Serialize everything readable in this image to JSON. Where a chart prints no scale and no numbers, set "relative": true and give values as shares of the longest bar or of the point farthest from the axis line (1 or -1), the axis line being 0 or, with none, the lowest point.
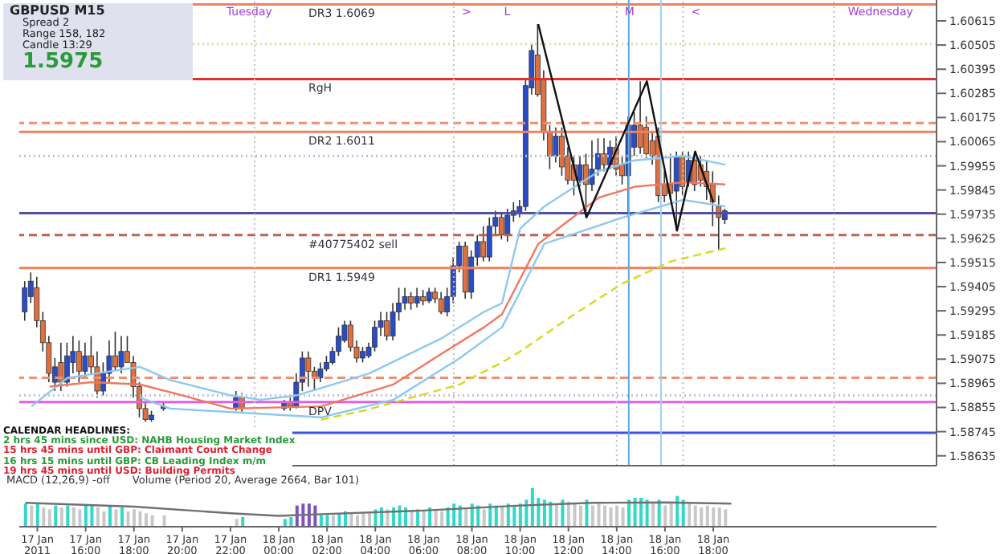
{
  "chart_data": [
    {
      "type": "candlestick",
      "title": "GBPUSD M15",
      "annotations": [
        "Spread 2",
        "Range 158, 182",
        "Candle 13:29",
        "1.5975",
        "CALENDAR HEADLINES:",
        "2 hrs 45 mins since USD: NAHB Housing Market Index",
        "15 hrs 45 mins until GBP: Claimant Count Change",
        "16 hrs 15 mins until GBP: CB Leading Index m/m",
        "19 hrs 45 mins until USD: Building Permits",
        {
          "text": "Tuesday",
          "x": "2011-01-17T21:30",
          "y": 1.6066
        },
        {
          "text": "Wednesday",
          "x": "2011-01-18T23:15",
          "y": 1.6066
        },
        {
          "text": ">",
          "x": "2011-01-18T07:15",
          "y": 1.6066
        },
        {
          "text": "L",
          "x": "2011-01-18T09:00",
          "y": 1.6066
        },
        {
          "text": "M",
          "x": "2011-01-18T14:00",
          "y": 1.6066
        },
        {
          "text": "<",
          "x": "2011-01-18T16:45",
          "y": 1.6066
        }
      ],
      "x": [
        "2011-01-17T13:30",
        "2011-01-17T13:45",
        "2011-01-17T14:00",
        "2011-01-17T14:15",
        "2011-01-17T14:30",
        "2011-01-17T14:45",
        "2011-01-17T15:00",
        "2011-01-17T15:15",
        "2011-01-17T15:30",
        "2011-01-17T15:45",
        "2011-01-17T16:00",
        "2011-01-17T16:15",
        "2011-01-17T16:30",
        "2011-01-17T16:45",
        "2011-01-17T17:00",
        "2011-01-17T17:15",
        "2011-01-17T17:30",
        "2011-01-17T17:45",
        "2011-01-17T18:00",
        "2011-01-17T18:15",
        "2011-01-17T18:30",
        "2011-01-17T18:45",
        "2011-01-17T19:15",
        "2011-01-17T22:15",
        "2011-01-17T22:30",
        "2011-01-18T00:15",
        "2011-01-18T00:30",
        "2011-01-18T00:45",
        "2011-01-18T01:00",
        "2011-01-18T01:15",
        "2011-01-18T01:30",
        "2011-01-18T01:45",
        "2011-01-18T02:00",
        "2011-01-18T02:15",
        "2011-01-18T02:30",
        "2011-01-18T02:45",
        "2011-01-18T03:00",
        "2011-01-18T03:15",
        "2011-01-18T03:30",
        "2011-01-18T03:45",
        "2011-01-18T04:00",
        "2011-01-18T04:15",
        "2011-01-18T04:30",
        "2011-01-18T04:45",
        "2011-01-18T05:00",
        "2011-01-18T05:15",
        "2011-01-18T05:30",
        "2011-01-18T05:45",
        "2011-01-18T06:00",
        "2011-01-18T06:15",
        "2011-01-18T06:30",
        "2011-01-18T06:45",
        "2011-01-18T07:00",
        "2011-01-18T07:15",
        "2011-01-18T07:30",
        "2011-01-18T07:45",
        "2011-01-18T08:00",
        "2011-01-18T08:15",
        "2011-01-18T08:30",
        "2011-01-18T08:45",
        "2011-01-18T09:00",
        "2011-01-18T09:15",
        "2011-01-18T09:30",
        "2011-01-18T09:45",
        "2011-01-18T10:00",
        "2011-01-18T10:15",
        "2011-01-18T10:30",
        "2011-01-18T10:45",
        "2011-01-18T11:00",
        "2011-01-18T11:15",
        "2011-01-18T11:30",
        "2011-01-18T11:45",
        "2011-01-18T12:00",
        "2011-01-18T12:15",
        "2011-01-18T12:30",
        "2011-01-18T12:45",
        "2011-01-18T13:00",
        "2011-01-18T13:15",
        "2011-01-18T13:30",
        "2011-01-18T13:45",
        "2011-01-18T14:00",
        "2011-01-18T14:15",
        "2011-01-18T14:30",
        "2011-01-18T14:45",
        "2011-01-18T15:00",
        "2011-01-18T15:15",
        "2011-01-18T15:30",
        "2011-01-18T15:45",
        "2011-01-18T16:00",
        "2011-01-18T16:15",
        "2011-01-18T16:30",
        "2011-01-18T16:45",
        "2011-01-18T17:00",
        "2011-01-18T17:15",
        "2011-01-18T17:30",
        "2011-01-18T17:45",
        "2011-01-18T18:00",
        "2011-01-18T18:15",
        "2011-01-18T18:30"
      ],
      "ohlc": [
        [
          1.5929,
          1.5943,
          1.5925,
          1.594
        ],
        [
          1.5936,
          1.5947,
          1.5933,
          1.5943
        ],
        [
          1.594,
          1.5945,
          1.5922,
          1.5925
        ],
        [
          1.5925,
          1.5929,
          1.5911,
          1.5915
        ],
        [
          1.5915,
          1.5918,
          1.5897,
          1.5901
        ],
        [
          1.5897,
          1.5908,
          1.5893,
          1.5904
        ],
        [
          1.5906,
          1.5915,
          1.5893,
          1.5897
        ],
        [
          1.5897,
          1.5915,
          1.5895,
          1.5909
        ],
        [
          1.5906,
          1.5918,
          1.5901,
          1.5911
        ],
        [
          1.5911,
          1.5916,
          1.5897,
          1.5902
        ],
        [
          1.5902,
          1.5915,
          1.5899,
          1.5909
        ],
        [
          1.5909,
          1.5918,
          1.5901,
          1.5904
        ],
        [
          1.5904,
          1.5911,
          1.589,
          1.5893
        ],
        [
          1.5893,
          1.5906,
          1.5891,
          1.5901
        ],
        [
          1.5901,
          1.5916,
          1.5897,
          1.5909
        ],
        [
          1.5909,
          1.592,
          1.5902,
          1.5904
        ],
        [
          1.5904,
          1.5918,
          1.5901,
          1.5911
        ],
        [
          1.5911,
          1.5918,
          1.5906,
          1.5906
        ],
        [
          1.5906,
          1.5909,
          1.589,
          1.5895
        ],
        [
          1.5895,
          1.5897,
          1.5881,
          1.5885
        ],
        [
          1.5885,
          1.5888,
          1.5879,
          1.588
        ],
        [
          1.588,
          1.5884,
          1.5879,
          1.5882
        ],
        [
          1.5885,
          1.5888,
          1.5884,
          1.5886
        ],
        [
          1.5885,
          1.5893,
          1.5884,
          1.589
        ],
        [
          1.589,
          1.5892,
          1.5883,
          1.5885
        ],
        [
          1.5885,
          1.5889,
          1.5884,
          1.5888
        ],
        [
          1.5888,
          1.589,
          1.5884,
          1.5886
        ],
        [
          1.5886,
          1.5901,
          1.5885,
          1.5897
        ],
        [
          1.5897,
          1.5911,
          1.5893,
          1.5908
        ],
        [
          1.5908,
          1.5911,
          1.5895,
          1.5902
        ],
        [
          1.5902,
          1.5904,
          1.5893,
          1.5899
        ],
        [
          1.5899,
          1.5906,
          1.5897,
          1.5903
        ],
        [
          1.5903,
          1.5909,
          1.5902,
          1.5906
        ],
        [
          1.5906,
          1.5913,
          1.5905,
          1.5911
        ],
        [
          1.5911,
          1.5922,
          1.5909,
          1.5918
        ],
        [
          1.5916,
          1.5925,
          1.5915,
          1.5923
        ],
        [
          1.5923,
          1.5925,
          1.5911,
          1.5913
        ],
        [
          1.5913,
          1.5916,
          1.5906,
          1.5908
        ],
        [
          1.5908,
          1.5913,
          1.5906,
          1.5911
        ],
        [
          1.5909,
          1.5915,
          1.5908,
          1.5913
        ],
        [
          1.5913,
          1.5925,
          1.5911,
          1.5922
        ],
        [
          1.5922,
          1.5929,
          1.5918,
          1.5925
        ],
        [
          1.5925,
          1.5929,
          1.5916,
          1.5918
        ],
        [
          1.5918,
          1.5933,
          1.5916,
          1.5929
        ],
        [
          1.5929,
          1.594,
          1.5925,
          1.5933
        ],
        [
          1.5933,
          1.594,
          1.593,
          1.5936
        ],
        [
          1.5936,
          1.5938,
          1.593,
          1.5933
        ],
        [
          1.5933,
          1.594,
          1.5931,
          1.5936
        ],
        [
          1.5936,
          1.5939,
          1.5932,
          1.5934
        ],
        [
          1.5934,
          1.594,
          1.5933,
          1.5938
        ],
        [
          1.5938,
          1.594,
          1.5933,
          1.5935
        ],
        [
          1.5935,
          1.5938,
          1.5928,
          1.5929
        ],
        [
          1.5929,
          1.594,
          1.5927,
          1.5936
        ],
        [
          1.5936,
          1.5954,
          1.5933,
          1.595
        ],
        [
          1.595,
          1.5961,
          1.5947,
          1.5959
        ],
        [
          1.5959,
          1.5961,
          1.5935,
          1.5938
        ],
        [
          1.5938,
          1.5957,
          1.5935,
          1.5954
        ],
        [
          1.5954,
          1.5964,
          1.595,
          1.5961
        ],
        [
          1.5961,
          1.5968,
          1.5952,
          1.5954
        ],
        [
          1.5954,
          1.5972,
          1.5952,
          1.5968
        ],
        [
          1.5968,
          1.5975,
          1.5964,
          1.5972
        ],
        [
          1.5972,
          1.5974,
          1.5962,
          1.5964
        ],
        [
          1.5964,
          1.5976,
          1.5961,
          1.5973
        ],
        [
          1.5973,
          1.5979,
          1.597,
          1.5975
        ],
        [
          1.5974,
          1.598,
          1.5972,
          1.5977
        ],
        [
          1.5977,
          1.6035,
          1.5975,
          1.6032
        ],
        [
          1.6031,
          1.6051,
          1.6028,
          1.6048
        ],
        [
          1.6046,
          1.606,
          1.6027,
          1.6028
        ],
        [
          1.6035,
          1.6039,
          1.6007,
          1.6011
        ],
        [
          1.6011,
          1.6014,
          1.5994,
          1.6
        ],
        [
          1.6,
          1.6013,
          1.5997,
          1.6009
        ],
        [
          1.6009,
          1.6013,
          1.5991,
          1.5995
        ],
        [
          1.6,
          1.6004,
          1.5987,
          1.5989
        ],
        [
          1.5996,
          1.6,
          1.5982,
          1.5989
        ],
        [
          1.5989,
          1.6,
          1.5986,
          1.5996
        ],
        [
          1.5996,
          1.6001,
          1.5972,
          1.5987
        ],
        [
          1.5987,
          1.6007,
          1.5984,
          1.5994
        ],
        [
          1.5994,
          1.6008,
          1.5991,
          1.6001
        ],
        [
          1.6001,
          1.6008,
          1.5993,
          1.5996
        ],
        [
          1.5996,
          1.6007,
          1.5994,
          1.6004
        ],
        [
          1.6004,
          1.6009,
          1.5991,
          1.5994
        ],
        [
          1.5996,
          1.6,
          1.5987,
          1.5991
        ],
        [
          1.5991,
          1.6018,
          1.5972,
          1.6014
        ],
        [
          1.6004,
          1.602,
          1.6,
          1.6014
        ],
        [
          1.6014,
          1.6034,
          1.6001,
          1.6004
        ],
        [
          1.6013,
          1.6018,
          1.5999,
          1.6001
        ],
        [
          1.6007,
          1.6011,
          1.5996,
          1.6
        ],
        [
          1.6009,
          1.6013,
          1.5979,
          1.5982
        ],
        [
          1.5987,
          1.5993,
          1.5979,
          1.5982
        ],
        [
          1.5987,
          1.6001,
          1.598,
          1.5983
        ],
        [
          1.5984,
          1.6002,
          1.5966,
          1.6
        ],
        [
          1.6,
          1.6002,
          1.5982,
          1.5986
        ],
        [
          1.5988,
          1.6002,
          1.5986,
          1.5998
        ],
        [
          1.5998,
          1.6002,
          1.5984,
          1.5987
        ],
        [
          1.5996,
          1.6,
          1.5986,
          1.5989
        ],
        [
          1.5993,
          1.5998,
          1.598,
          1.5986
        ],
        [
          1.5987,
          1.5993,
          1.5968,
          1.5979
        ],
        [
          1.5977,
          1.5982,
          1.5957,
          1.5972
        ],
        [
          1.5971,
          1.5976,
          1.5969,
          1.5975
        ]
      ],
      "series": [
        {
          "type": "line",
          "color": "#8ec8f0",
          "x": [
            "2011-01-17T13:45",
            "2011-01-17T15:15",
            "2011-01-17T18:15",
            "2011-01-17T19:30",
            "2011-01-17T22:00",
            "2011-01-17T23:15",
            "2011-01-18T00:45",
            "2011-01-18T03:45",
            "2011-01-18T06:45",
            "2011-01-18T08:30",
            "2011-01-18T09:15",
            "2011-01-18T10:00",
            "2011-01-18T11:00",
            "2011-01-18T13:15",
            "2011-01-18T14:45",
            "2011-01-18T16:45",
            "2011-01-18T18:30"
          ],
          "values": [
            1.5886,
            1.5899,
            1.5904,
            1.5898,
            1.5891,
            1.5889,
            1.5891,
            1.5901,
            1.5917,
            1.5929,
            1.5933,
            1.5967,
            1.5977,
            1.5993,
            1.5998,
            1.6,
            1.5996
          ]
        },
        {
          "type": "line",
          "color": "#f07860",
          "x": [
            "2011-01-17T14:30",
            "2011-01-17T16:15",
            "2011-01-17T18:15",
            "2011-01-17T20:00",
            "2011-01-17T22:00",
            "2011-01-18T01:45",
            "2011-01-18T04:45",
            "2011-01-18T06:45",
            "2011-01-18T08:30",
            "2011-01-18T09:15",
            "2011-01-18T10:45",
            "2011-01-18T13:15",
            "2011-01-18T14:45",
            "2011-01-18T16:45",
            "2011-01-18T18:30"
          ],
          "values": [
            1.5895,
            1.5897,
            1.5896,
            1.5891,
            1.5885,
            1.5886,
            1.5896,
            1.591,
            1.5922,
            1.5928,
            1.596,
            1.5981,
            1.5986,
            1.5988,
            1.5987
          ]
        },
        {
          "type": "line",
          "color": "#8ec8f0",
          "x": [
            "2011-01-17T18:15",
            "2011-01-17T19:30",
            "2011-01-18T01:45",
            "2011-01-18T04:45",
            "2011-01-18T07:30",
            "2011-01-18T09:15",
            "2011-01-18T11:00",
            "2011-01-18T14:15",
            "2011-01-18T16:45",
            "2011-01-18T18:30"
          ],
          "values": [
            1.589,
            1.5885,
            1.5881,
            1.5889,
            1.5908,
            1.5922,
            1.596,
            1.5972,
            1.598,
            1.5977
          ]
        },
        {
          "type": "line",
          "color": "#d8d820",
          "line_style": "dashed",
          "x": [
            "2011-01-18T01:45",
            "2011-01-18T03:30",
            "2011-01-18T05:30",
            "2011-01-18T07:30",
            "2011-01-18T08:00",
            "2011-01-18T09:15",
            "2011-01-18T10:00",
            "2011-01-18T12:15",
            "2011-01-18T14:15",
            "2011-01-18T16:15",
            "2011-01-18T18:30"
          ],
          "values": [
            1.588,
            1.5884,
            1.589,
            1.5896,
            1.5899,
            1.5906,
            1.5911,
            1.5928,
            1.5942,
            1.5952,
            1.5958
          ]
        },
        {
          "type": "line",
          "color": "#111111",
          "x": [
            "2011-01-18T10:45",
            "2011-01-18T12:45",
            "2011-01-18T15:15",
            "2011-01-18T16:30",
            "2011-01-18T17:15",
            "2011-01-18T18:00"
          ],
          "values": [
            1.606,
            1.5972,
            1.6034,
            1.5966,
            1.6002,
            1.5979
          ]
        }
      ],
      "ref_lines": [
        {
          "axis": "y",
          "value": 1.6069,
          "label": "DR3 1.6069",
          "color": "#f08060",
          "line_style": "solid"
        },
        {
          "axis": "y",
          "value": 1.6051,
          "color": "#c8e8a0",
          "line_style": "dotted"
        },
        {
          "axis": "y",
          "value": 1.6035,
          "label": "RgH",
          "color": "#e03030",
          "line_style": "solid"
        },
        {
          "axis": "y",
          "value": 1.6015,
          "color": "#f09070",
          "line_style": "dashed"
        },
        {
          "axis": "y",
          "value": 1.6011,
          "label": "DR2 1.6011",
          "color": "#f08060",
          "line_style": "solid"
        },
        {
          "axis": "y",
          "value": 1.6,
          "color": "#c0c0d8",
          "line_style": "dotted"
        },
        {
          "axis": "y",
          "value": 1.5974,
          "color": "#5050a0",
          "line_style": "solid"
        },
        {
          "axis": "y",
          "value": 1.5964,
          "label": "#40775402 sell",
          "color": "#c06050",
          "line_style": "dashed"
        },
        {
          "axis": "y",
          "value": 1.5949,
          "label": "DR1 1.5949",
          "color": "#f08060",
          "line_style": "solid"
        },
        {
          "axis": "y",
          "value": 1.5899,
          "color": "#f09070",
          "line_style": "dashed"
        },
        {
          "axis": "y",
          "value": 1.5891,
          "color": "#c0c0d8",
          "line_style": "dotted"
        },
        {
          "axis": "y",
          "value": 1.5888,
          "label": "DPV",
          "color": "#e060e0",
          "line_style": "solid"
        },
        {
          "axis": "y",
          "value": 1.5874,
          "color": "#4050e0",
          "line_style": "solid"
        },
        {
          "axis": "x",
          "value": "2011-01-17T23:00",
          "color": "#c0c0c0",
          "line_style": "dotted"
        },
        {
          "axis": "x",
          "value": "2011-01-18T07:15",
          "color": "#c0c0c0",
          "line_style": "dotted"
        },
        {
          "axis": "x",
          "value": "2011-01-18T14:00",
          "color": "#c0c0c0",
          "line_style": "dotted"
        },
        {
          "axis": "x",
          "value": "2011-01-18T16:45",
          "color": "#c0c0c0",
          "line_style": "dotted"
        },
        {
          "axis": "x",
          "value": "2011-01-18T23:00",
          "color": "#c0c0c0",
          "line_style": "dotted"
        },
        {
          "axis": "x",
          "value": "2011-01-18T14:30",
          "color": "#60a8e0",
          "line_style": "solid"
        },
        {
          "axis": "x",
          "value": "2011-01-18T15:50",
          "color": "#a0d0f0",
          "line_style": "solid"
        }
      ],
      "xlim": [
        "2011-01-17T13:15",
        "2011-01-19T03:15"
      ],
      "xticks": [
        {
          "value": "2011-01-17T14:00",
          "label": null
        },
        {
          "value": "2011-01-17T16:00",
          "label": null
        },
        {
          "value": "2011-01-17T18:00",
          "label": null
        },
        {
          "value": "2011-01-17T20:00",
          "label": null
        },
        {
          "value": "2011-01-17T22:00",
          "label": null
        },
        {
          "value": "2011-01-18T00:00",
          "label": null
        },
        {
          "value": "2011-01-18T02:00",
          "label": null
        },
        {
          "value": "2011-01-18T04:00",
          "label": null
        },
        {
          "value": "2011-01-18T06:00",
          "label": null
        },
        {
          "value": "2011-01-18T08:00",
          "label": null
        },
        {
          "value": "2011-01-18T10:00",
          "label": null
        },
        {
          "value": "2011-01-18T12:00",
          "label": null
        },
        {
          "value": "2011-01-18T14:00",
          "label": null
        },
        {
          "value": "2011-01-18T16:00",
          "label": null
        },
        {
          "value": "2011-01-18T18:00",
          "label": null
        }
      ],
      "ylim": [
        1.5859,
        1.6071
      ],
      "yticks": [
        1.60615,
        1.60505,
        1.60395,
        1.60285,
        1.60175,
        1.60065,
        1.59955,
        1.59845,
        1.59735,
        1.59625,
        1.59515,
        1.59405,
        1.59295,
        1.59185,
        1.59075,
        1.58965,
        1.58855,
        1.58745,
        1.58635
      ],
      "tick_labels": "y"
    },
    {
      "type": "bar",
      "relative": true,
      "annotations": [
        "MACD (12,26,9) -off",
        "Volume (Period 20, Average 2664, Bar 101)"
      ],
      "x": [
        "2011-01-17T13:30",
        "2011-01-17T13:45",
        "2011-01-17T14:00",
        "2011-01-17T14:15",
        "2011-01-17T14:30",
        "2011-01-17T14:45",
        "2011-01-17T15:00",
        "2011-01-17T15:15",
        "2011-01-17T15:30",
        "2011-01-17T15:45",
        "2011-01-17T16:00",
        "2011-01-17T16:15",
        "2011-01-17T16:30",
        "2011-01-17T16:45",
        "2011-01-17T17:00",
        "2011-01-17T17:15",
        "2011-01-17T17:30",
        "2011-01-17T17:45",
        "2011-01-17T18:00",
        "2011-01-17T18:15",
        "2011-01-17T18:30",
        "2011-01-17T18:45",
        "2011-01-17T19:15",
        "2011-01-17T22:15",
        "2011-01-17T22:30",
        "2011-01-18T00:15",
        "2011-01-18T00:30",
        "2011-01-18T00:45",
        "2011-01-18T01:00",
        "2011-01-18T01:15",
        "2011-01-18T01:30",
        "2011-01-18T01:45",
        "2011-01-18T02:00",
        "2011-01-18T02:15",
        "2011-01-18T02:30",
        "2011-01-18T02:45",
        "2011-01-18T03:00",
        "2011-01-18T03:15",
        "2011-01-18T03:30",
        "2011-01-18T03:45",
        "2011-01-18T04:00",
        "2011-01-18T04:15",
        "2011-01-18T04:30",
        "2011-01-18T04:45",
        "2011-01-18T05:00",
        "2011-01-18T05:15",
        "2011-01-18T05:30",
        "2011-01-18T05:45",
        "2011-01-18T06:00",
        "2011-01-18T06:15",
        "2011-01-18T06:30",
        "2011-01-18T06:45",
        "2011-01-18T07:00",
        "2011-01-18T07:15",
        "2011-01-18T07:30",
        "2011-01-18T07:45",
        "2011-01-18T08:00",
        "2011-01-18T08:15",
        "2011-01-18T08:30",
        "2011-01-18T08:45",
        "2011-01-18T09:00",
        "2011-01-18T09:15",
        "2011-01-18T09:30",
        "2011-01-18T09:45",
        "2011-01-18T10:00",
        "2011-01-18T10:15",
        "2011-01-18T10:30",
        "2011-01-18T10:45",
        "2011-01-18T11:00",
        "2011-01-18T11:15",
        "2011-01-18T11:30",
        "2011-01-18T11:45",
        "2011-01-18T12:00",
        "2011-01-18T12:15",
        "2011-01-18T12:30",
        "2011-01-18T12:45",
        "2011-01-18T13:00",
        "2011-01-18T13:15",
        "2011-01-18T13:30",
        "2011-01-18T13:45",
        "2011-01-18T14:00",
        "2011-01-18T14:15",
        "2011-01-18T14:30",
        "2011-01-18T14:45",
        "2011-01-18T15:00",
        "2011-01-18T15:15",
        "2011-01-18T15:30",
        "2011-01-18T15:45",
        "2011-01-18T16:00",
        "2011-01-18T16:15",
        "2011-01-18T16:30",
        "2011-01-18T16:45",
        "2011-01-18T17:00",
        "2011-01-18T17:15",
        "2011-01-18T17:30",
        "2011-01-18T17:45",
        "2011-01-18T18:00",
        "2011-01-18T18:15",
        "2011-01-18T18:30"
      ],
      "series": [
        {
          "type": "bar",
          "values": [
            0.6,
            0.55,
            0.6,
            0.5,
            0.45,
            0.55,
            0.5,
            0.55,
            0.5,
            0.45,
            0.55,
            0.55,
            0.5,
            0.4,
            0.55,
            0.45,
            0.5,
            0.4,
            0.45,
            0.4,
            0.35,
            0.3,
            0.3,
            0.2,
            0.25,
            0.2,
            0.25,
            0.55,
            0.6,
            0.6,
            0.55,
            0.3,
            0.3,
            0.3,
            0.35,
            0.4,
            0.35,
            0.3,
            0.35,
            0.35,
            0.45,
            0.5,
            0.45,
            0.5,
            0.55,
            0.5,
            0.4,
            0.45,
            0.4,
            0.5,
            0.45,
            0.4,
            0.5,
            0.6,
            0.55,
            0.5,
            0.6,
            0.55,
            0.45,
            0.6,
            0.55,
            0.5,
            0.6,
            0.55,
            0.6,
            0.7,
            1,
            0.75,
            0.7,
            0.65,
            0.6,
            0.7,
            0.65,
            0.6,
            0.55,
            0.7,
            0.55,
            0.6,
            0.55,
            0.5,
            0.55,
            0.5,
            0.7,
            0.75,
            0.75,
            0.7,
            0.6,
            0.7,
            0.55,
            0.6,
            0.8,
            0.7,
            0.6,
            0.55,
            0.5,
            0.55,
            0.5,
            0.5,
            0.45
          ],
          "colors": [
            "#30d8c8",
            "#c8c8c8",
            "#30d8c8",
            "#c8c8c8",
            "#c8c8c8",
            "#30d8c8",
            "#c8c8c8",
            "#30d8c8",
            "#c8c8c8",
            "#c8c8c8",
            "#30d8c8",
            "#30d8c8",
            "#c8c8c8",
            "#c8c8c8",
            "#30d8c8",
            "#c8c8c8",
            "#30d8c8",
            "#c8c8c8",
            "#c8c8c8",
            "#c8c8c8",
            "#c8c8c8",
            "#c8c8c8",
            "#c8c8c8",
            "#c8c8c8",
            "#30d8c8",
            "#30d8c8",
            "#30d8c8",
            "#8050c0",
            "#8050c0",
            "#8050c0",
            "#8050c0",
            "#30d8c8",
            "#30d8c8",
            "#c8c8c8",
            "#30d8c8",
            "#30d8c8",
            "#c8c8c8",
            "#c8c8c8",
            "#c8c8c8",
            "#c8c8c8",
            "#30d8c8",
            "#30d8c8",
            "#c8c8c8",
            "#30d8c8",
            "#30d8c8",
            "#30d8c8",
            "#c8c8c8",
            "#30d8c8",
            "#c8c8c8",
            "#30d8c8",
            "#c8c8c8",
            "#c8c8c8",
            "#30d8c8",
            "#30d8c8",
            "#30d8c8",
            "#c8c8c8",
            "#30d8c8",
            "#30d8c8",
            "#c8c8c8",
            "#30d8c8",
            "#30d8c8",
            "#c8c8c8",
            "#30d8c8",
            "#30d8c8",
            "#30d8c8",
            "#30d8c8",
            "#30d8c8",
            "#30d8c8",
            "#30d8c8",
            "#30d8c8",
            "#c8c8c8",
            "#30d8c8",
            "#c8c8c8",
            "#c8c8c8",
            "#c8c8c8",
            "#30d8c8",
            "#c8c8c8",
            "#c8c8c8",
            "#c8c8c8",
            "#c8c8c8",
            "#c8c8c8",
            "#c8c8c8",
            "#30d8c8",
            "#30d8c8",
            "#30d8c8",
            "#30d8c8",
            "#c8c8c8",
            "#30d8c8",
            "#c8c8c8",
            "#c8c8c8",
            "#30d8c8",
            "#30d8c8",
            "#c8c8c8",
            "#c8c8c8",
            "#c8c8c8",
            "#c8c8c8",
            "#c8c8c8",
            "#c8c8c8",
            "#c8c8c8"
          ]
        },
        {
          "type": "line",
          "color": "#707070",
          "x": [
            "2011-01-17T13:30",
            "2011-01-17T18:00",
            "2011-01-17T22:00",
            "2011-01-18T00:00",
            "2011-01-18T02:00",
            "2011-01-18T06:00",
            "2011-01-18T10:00",
            "2011-01-18T13:00",
            "2011-01-18T16:00",
            "2011-01-18T18:45"
          ],
          "values": [
            0.62,
            0.52,
            0.35,
            0.28,
            0.33,
            0.42,
            0.55,
            0.62,
            0.63,
            0.6
          ]
        }
      ],
      "xlim": [
        "2011-01-17T13:15",
        "2011-01-19T03:15"
      ],
      "xticks": [
        {
          "value": "2011-01-17T14:00",
          "label": "17 Jan 2011"
        },
        {
          "value": "2011-01-17T16:00",
          "label": "17 Jan 16:00"
        },
        {
          "value": "2011-01-17T18:00",
          "label": "17 Jan 18:00"
        },
        {
          "value": "2011-01-17T20:00",
          "label": "17 Jan 20:00"
        },
        {
          "value": "2011-01-17T22:00",
          "label": "17 Jan 22:00"
        },
        {
          "value": "2011-01-18T00:00",
          "label": "18 Jan 00:00"
        },
        {
          "value": "2011-01-18T02:00",
          "label": "18 Jan 02:00"
        },
        {
          "value": "2011-01-18T04:00",
          "label": "18 Jan 04:00"
        },
        {
          "value": "2011-01-18T06:00",
          "label": "18 Jan 06:00"
        },
        {
          "value": "2011-01-18T08:00",
          "label": "18 Jan 08:00"
        },
        {
          "value": "2011-01-18T10:00",
          "label": "18 Jan 10:00"
        },
        {
          "value": "2011-01-18T12:00",
          "label": "18 Jan 12:00"
        },
        {
          "value": "2011-01-18T14:00",
          "label": "18 Jan 14:00"
        },
        {
          "value": "2011-01-18T16:00",
          "label": "18 Jan 16:00"
        },
        {
          "value": "2011-01-18T18:00",
          "label": "18 Jan 18:00"
        }
      ],
      "tick_labels": "x"
    }
  ]
}
